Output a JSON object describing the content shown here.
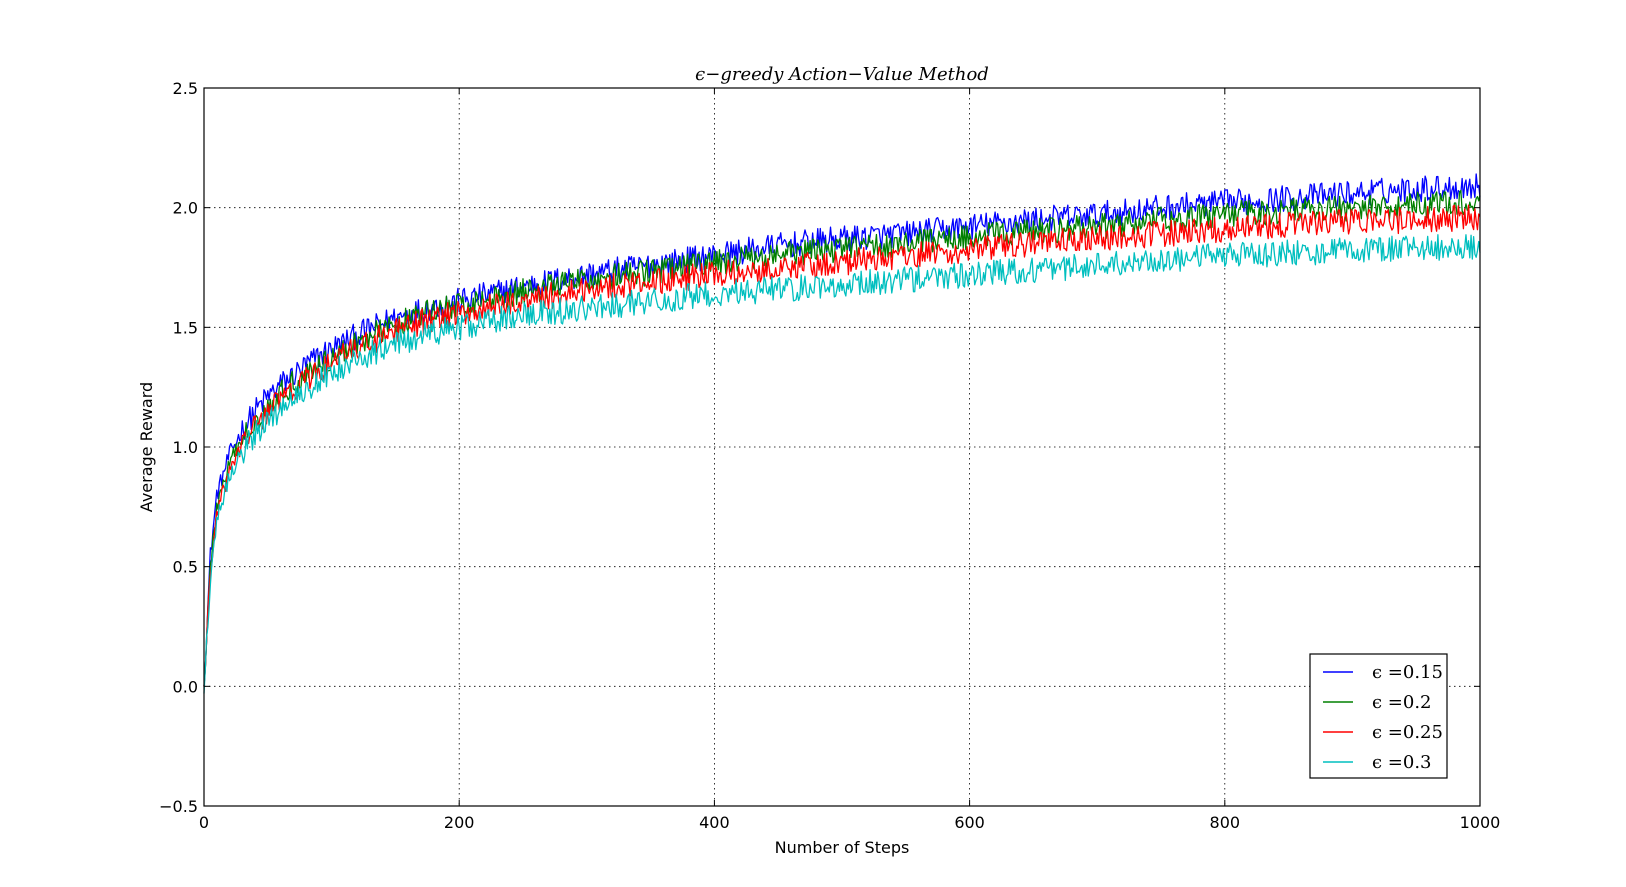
{
  "chart_data": {
    "type": "line",
    "title": "ϵ−greedy Action−Value Method",
    "xlabel": "Number of Steps",
    "ylabel": "Average Reward",
    "xlim": [
      0,
      1000
    ],
    "ylim": [
      -0.5,
      2.5
    ],
    "xticks": [
      0,
      200,
      400,
      600,
      800,
      1000
    ],
    "xtick_labels": [
      "0",
      "200",
      "400",
      "600",
      "800",
      "1000"
    ],
    "yticks": [
      -0.5,
      0.0,
      0.5,
      1.0,
      1.5,
      2.0,
      2.5
    ],
    "ytick_labels": [
      "−0.5",
      "0.0",
      "0.5",
      "1.0",
      "1.5",
      "2.0",
      "2.5"
    ],
    "grid": true,
    "legend_position": "bottom-right",
    "x": [
      0,
      5,
      10,
      20,
      30,
      40,
      50,
      60,
      70,
      80,
      90,
      100,
      125,
      150,
      175,
      200,
      250,
      300,
      350,
      400,
      450,
      500,
      550,
      600,
      650,
      700,
      750,
      800,
      850,
      900,
      950,
      1000
    ],
    "series": [
      {
        "name": "ϵ =0.15",
        "color": "#0000ff",
        "values": [
          0.0,
          0.55,
          0.8,
          0.97,
          1.07,
          1.15,
          1.21,
          1.26,
          1.3,
          1.34,
          1.38,
          1.41,
          1.48,
          1.54,
          1.58,
          1.61,
          1.67,
          1.72,
          1.76,
          1.8,
          1.84,
          1.87,
          1.89,
          1.92,
          1.95,
          1.97,
          2.0,
          2.02,
          2.04,
          2.06,
          2.08,
          2.09
        ]
      },
      {
        "name": "ϵ =0.2",
        "color": "#008000",
        "values": [
          0.0,
          0.5,
          0.75,
          0.93,
          1.03,
          1.11,
          1.17,
          1.22,
          1.27,
          1.31,
          1.34,
          1.37,
          1.45,
          1.51,
          1.56,
          1.59,
          1.65,
          1.7,
          1.73,
          1.77,
          1.8,
          1.83,
          1.85,
          1.88,
          1.9,
          1.92,
          1.95,
          1.97,
          1.99,
          2.0,
          2.01,
          2.02
        ]
      },
      {
        "name": "ϵ =0.25",
        "color": "#ff0000",
        "values": [
          0.0,
          0.47,
          0.72,
          0.9,
          1.01,
          1.09,
          1.15,
          1.2,
          1.24,
          1.28,
          1.31,
          1.35,
          1.43,
          1.48,
          1.53,
          1.56,
          1.61,
          1.66,
          1.69,
          1.72,
          1.75,
          1.77,
          1.8,
          1.82,
          1.85,
          1.87,
          1.89,
          1.91,
          1.93,
          1.94,
          1.95,
          1.96
        ]
      },
      {
        "name": "ϵ =0.3",
        "color": "#00bfbf",
        "values": [
          0.0,
          0.45,
          0.7,
          0.88,
          0.98,
          1.05,
          1.11,
          1.16,
          1.2,
          1.24,
          1.28,
          1.31,
          1.38,
          1.43,
          1.47,
          1.5,
          1.55,
          1.58,
          1.61,
          1.64,
          1.66,
          1.68,
          1.7,
          1.72,
          1.74,
          1.76,
          1.78,
          1.8,
          1.81,
          1.82,
          1.83,
          1.84
        ]
      }
    ]
  }
}
